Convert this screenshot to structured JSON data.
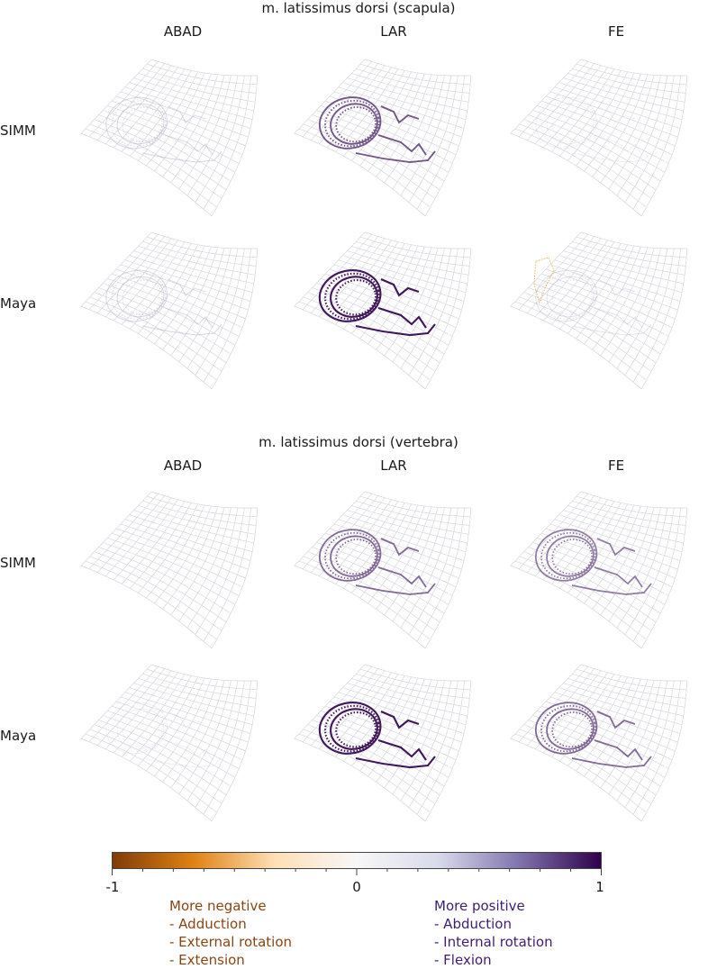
{
  "chart_data": {
    "type": "heatmap",
    "sections": [
      {
        "title": "m. latissimus dorsi (scapula)",
        "columns": [
          "ABAD",
          "LAR",
          "FE"
        ],
        "rows": [
          "SIMM",
          "Maya"
        ],
        "panels": [
          {
            "row": "SIMM",
            "col": "ABAD",
            "intensity": 0.35
          },
          {
            "row": "SIMM",
            "col": "LAR",
            "intensity": 0.8
          },
          {
            "row": "SIMM",
            "col": "FE",
            "intensity": 0.2
          },
          {
            "row": "Maya",
            "col": "ABAD",
            "intensity": 0.35
          },
          {
            "row": "Maya",
            "col": "LAR",
            "intensity": 0.95
          },
          {
            "row": "Maya",
            "col": "FE",
            "intensity": 0.3,
            "negative_region": true
          }
        ]
      },
      {
        "title": "m. latissimus dorsi (vertebra)",
        "columns": [
          "ABAD",
          "LAR",
          "FE"
        ],
        "rows": [
          "SIMM",
          "Maya"
        ],
        "panels": [
          {
            "row": "SIMM",
            "col": "ABAD",
            "intensity": 0.05
          },
          {
            "row": "SIMM",
            "col": "LAR",
            "intensity": 0.75
          },
          {
            "row": "SIMM",
            "col": "FE",
            "intensity": 0.7
          },
          {
            "row": "Maya",
            "col": "ABAD",
            "intensity": 0.2
          },
          {
            "row": "Maya",
            "col": "LAR",
            "intensity": 0.95
          },
          {
            "row": "Maya",
            "col": "FE",
            "intensity": 0.75
          }
        ]
      }
    ],
    "colorbar": {
      "range": [
        -1,
        1
      ],
      "tick_labels": [
        "-1",
        "0",
        "1"
      ],
      "colors": [
        "#7f3b08",
        "#e08214",
        "#fee0b6",
        "#f7f7f7",
        "#d8daeb",
        "#8073ac",
        "#2d004b"
      ]
    },
    "legend": {
      "negative": {
        "heading": "More negative",
        "items": [
          "- Adduction",
          "- External rotation",
          "- Extension"
        ]
      },
      "positive": {
        "heading": "More positive",
        "items": [
          "- Abduction",
          "- Internal rotation",
          "- Flexion"
        ]
      }
    }
  }
}
